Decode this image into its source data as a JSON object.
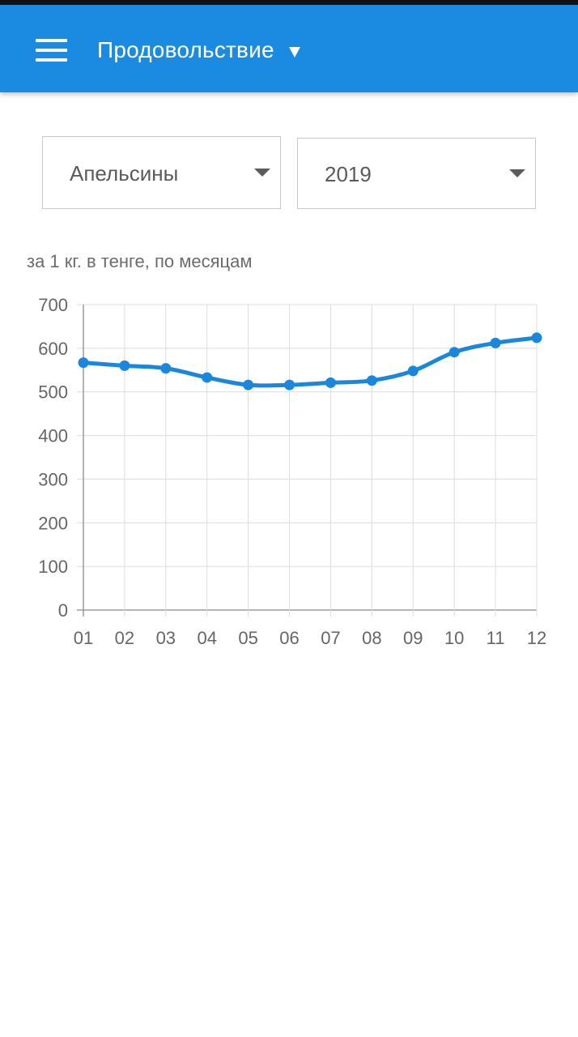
{
  "app_bar": {
    "title": "Продовольствие",
    "background": "#1a8be0",
    "menu_icon": "hamburger-menu-icon",
    "title_dropdown_icon": "caret-down-icon"
  },
  "filters": {
    "product": {
      "value": "Апельсины",
      "icon": "caret-down-icon"
    },
    "year": {
      "value": "2019",
      "icon": "caret-down-icon"
    }
  },
  "chart_caption": "за 1 кг. в тенге, по месяцам",
  "chart_data": {
    "type": "line",
    "title": "",
    "xlabel": "",
    "ylabel": "",
    "categories": [
      "01",
      "02",
      "03",
      "04",
      "05",
      "06",
      "07",
      "08",
      "09",
      "10",
      "11",
      "12"
    ],
    "series": [
      {
        "values": [
          567,
          560,
          554,
          533,
          516,
          516,
          521,
          526,
          548,
          591,
          612,
          624
        ],
        "color": "#1a87dc"
      }
    ],
    "ylim": [
      0,
      700
    ],
    "yticks": [
      0,
      100,
      200,
      300,
      400,
      500,
      600,
      700
    ],
    "grid": true,
    "legend": "none",
    "markers": true,
    "smooth": true
  }
}
